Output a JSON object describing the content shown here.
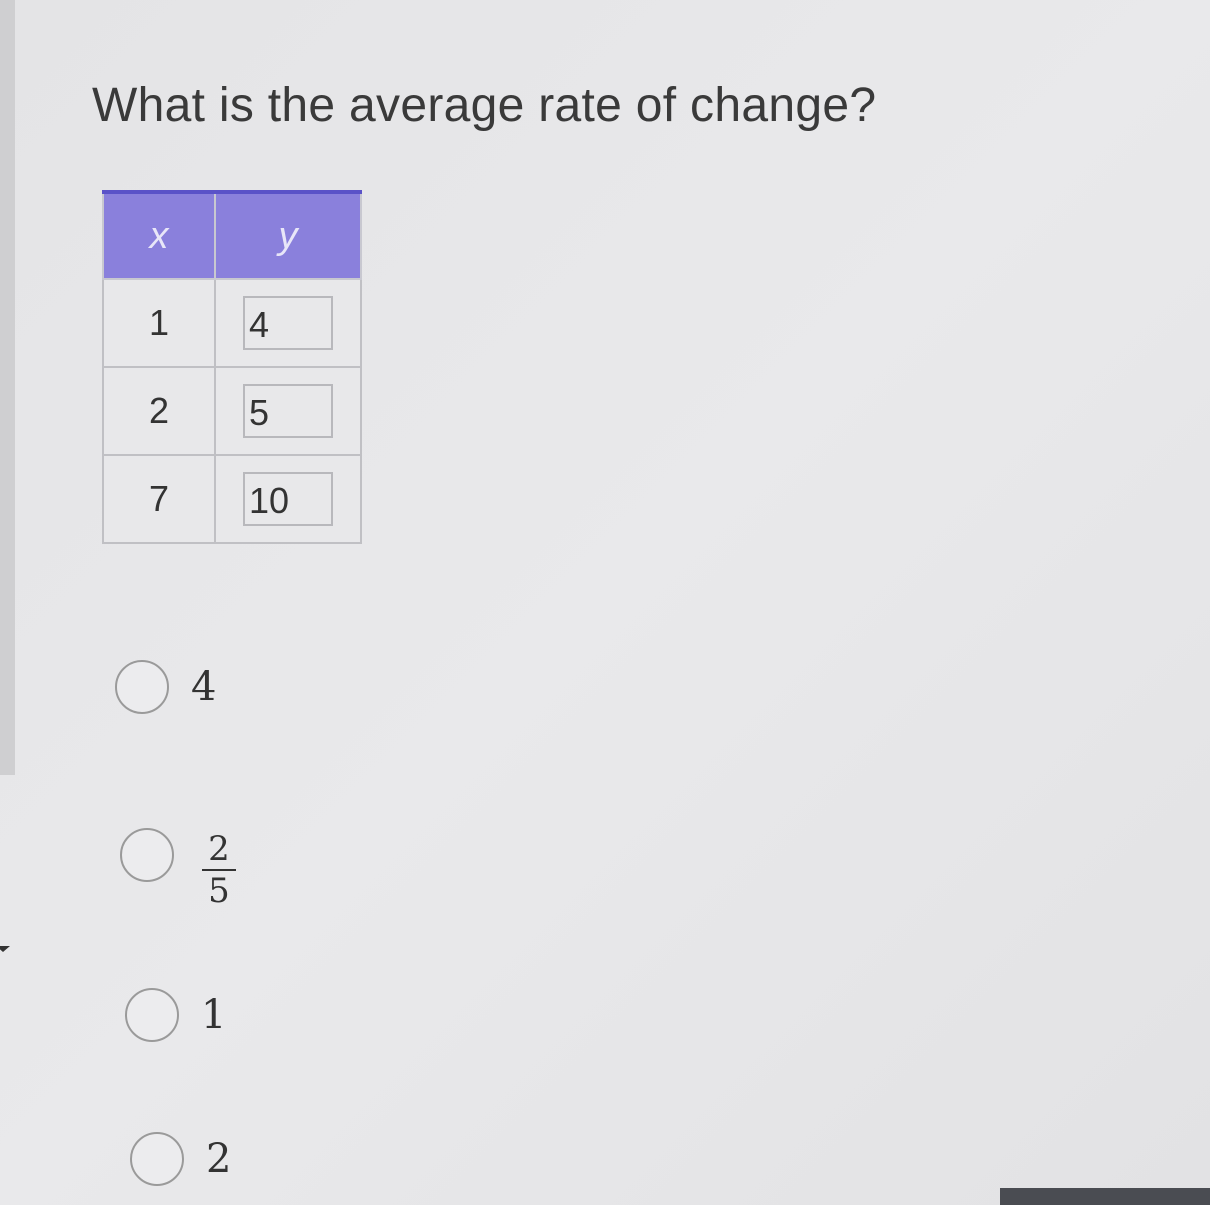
{
  "question": "What is the average rate of change?",
  "table": {
    "headers": [
      "x",
      "y"
    ],
    "rows": [
      {
        "x": "1",
        "y": "4"
      },
      {
        "x": "2",
        "y": "5"
      },
      {
        "x": "7",
        "y": "10"
      }
    ]
  },
  "options": [
    {
      "label": "4"
    },
    {
      "numerator": "2",
      "denominator": "5"
    },
    {
      "label": "1"
    },
    {
      "label": "2"
    }
  ],
  "colors": {
    "table_header": "#8a80dc",
    "table_header_border": "#5a52c8"
  }
}
